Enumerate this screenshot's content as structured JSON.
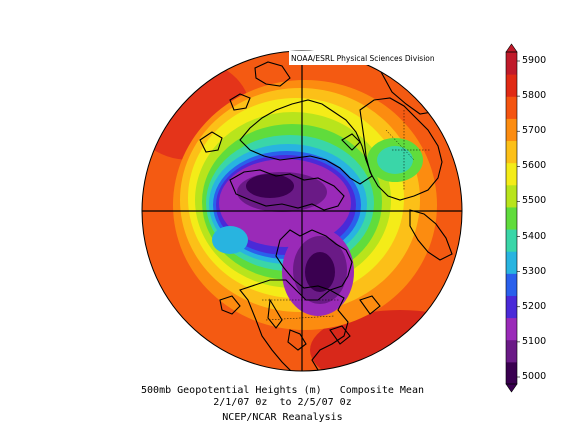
{
  "credit": "NOAA/ESRL Physical Sciences Division",
  "caption": {
    "line1": "500mb Geopotential Heights (m)   Composite Mean",
    "line2": "2/1/07 0z  to 2/5/07 0z",
    "line3": "NCEP/NCAR Reanalysis"
  },
  "colorbar": {
    "ticks": [
      "5000",
      "5100",
      "5200",
      "5300",
      "5400",
      "5500",
      "5600",
      "5700",
      "5800",
      "5900"
    ],
    "colors": [
      "#3a0050",
      "#6a1a86",
      "#9a2ab8",
      "#4a2ad8",
      "#2a60ec",
      "#28b4e0",
      "#3ad6a8",
      "#60dc3c",
      "#b8e41c",
      "#f4ec18",
      "#fcc018",
      "#fc8c10",
      "#f45410",
      "#e02a14",
      "#c01a2a"
    ]
  }
}
